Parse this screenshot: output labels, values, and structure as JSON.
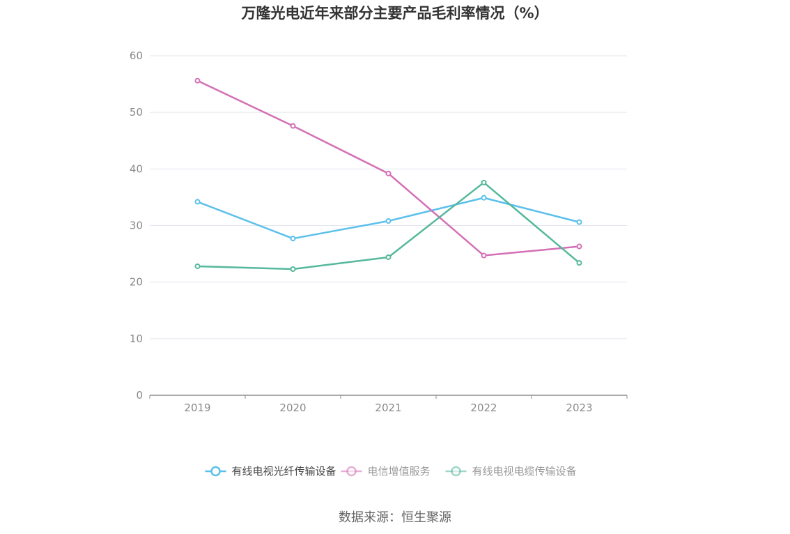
{
  "chart_data": {
    "type": "line",
    "title": "万隆光电近年来部分主要产品毛利率情况（%）",
    "xlabel": "",
    "ylabel": "",
    "categories": [
      "2019",
      "2020",
      "2021",
      "2022",
      "2023"
    ],
    "ylim": [
      0,
      60
    ],
    "yticks": [
      0,
      10,
      20,
      30,
      40,
      50,
      60
    ],
    "grid": true,
    "legend_position": "bottom",
    "series": [
      {
        "name": "有线电视光纤传输设备",
        "color": "#5bc0eb",
        "values": [
          34.2,
          27.7,
          30.8,
          34.9,
          30.6
        ]
      },
      {
        "name": "电信增值服务",
        "color": "#d46fb5",
        "values": [
          55.6,
          47.6,
          39.2,
          24.7,
          26.3
        ]
      },
      {
        "name": "有线电视电缆传输设备",
        "color": "#55b89c",
        "values": [
          22.8,
          22.3,
          24.4,
          37.6,
          23.4
        ]
      }
    ]
  },
  "source": "数据来源：恒生聚源"
}
